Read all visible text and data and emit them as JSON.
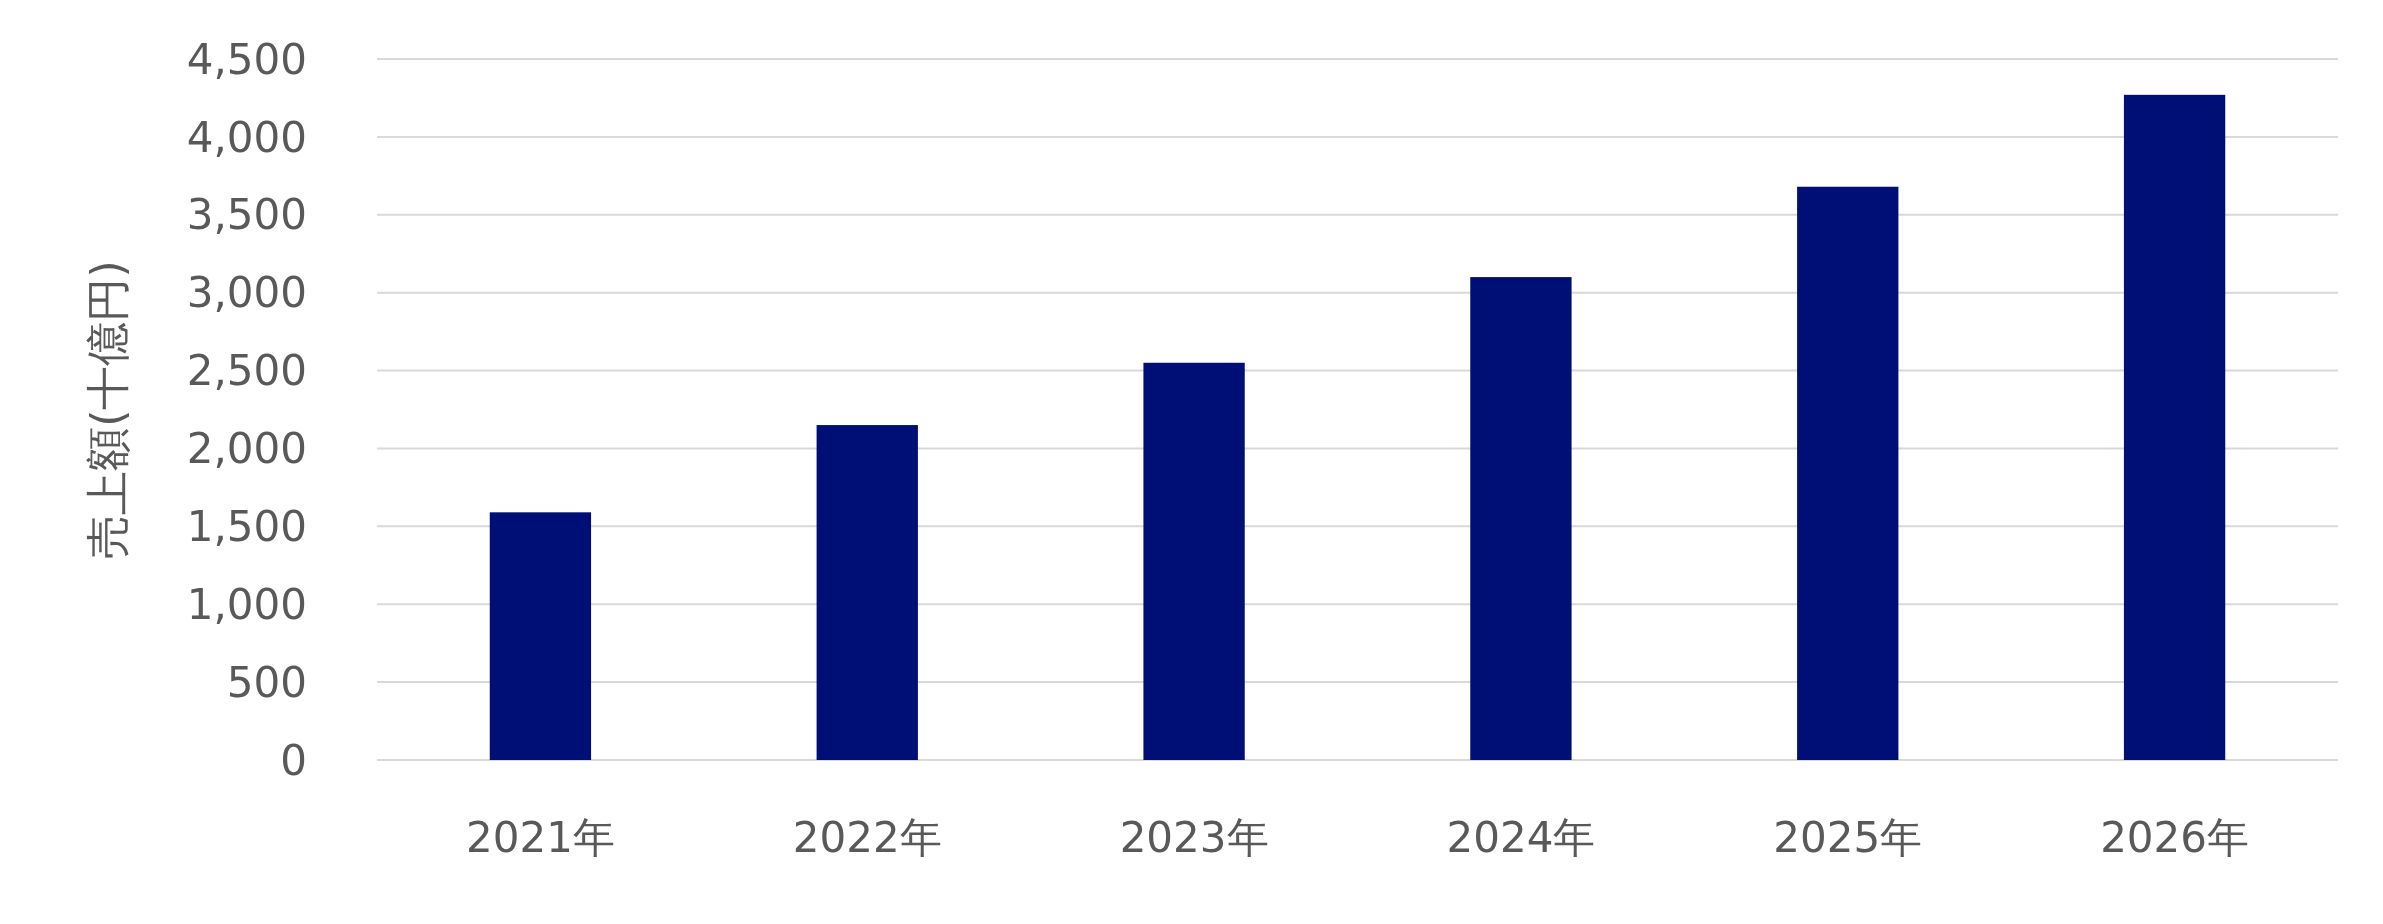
{
  "chart_data": {
    "type": "bar",
    "ylabel": "売上額(十億円)",
    "categories": [
      "2021年",
      "2022年",
      "2023年",
      "2024年",
      "2025年",
      "2026年"
    ],
    "values": [
      1590,
      2150,
      2550,
      3100,
      3680,
      4270
    ],
    "color": "#000f75",
    "ylim": [
      0,
      4500
    ],
    "yticks": [
      {
        "value": 0,
        "label": "0"
      },
      {
        "value": 500,
        "label": "500"
      },
      {
        "value": 1000,
        "label": "1,000"
      },
      {
        "value": 1500,
        "label": "1,500"
      },
      {
        "value": 2000,
        "label": "2,000"
      },
      {
        "value": 2500,
        "label": "2,500"
      },
      {
        "value": 3000,
        "label": "3,000"
      },
      {
        "value": 3500,
        "label": "3,500"
      },
      {
        "value": 4000,
        "label": "4,000"
      },
      {
        "value": 4500,
        "label": "4,500"
      }
    ],
    "grid": "y"
  }
}
